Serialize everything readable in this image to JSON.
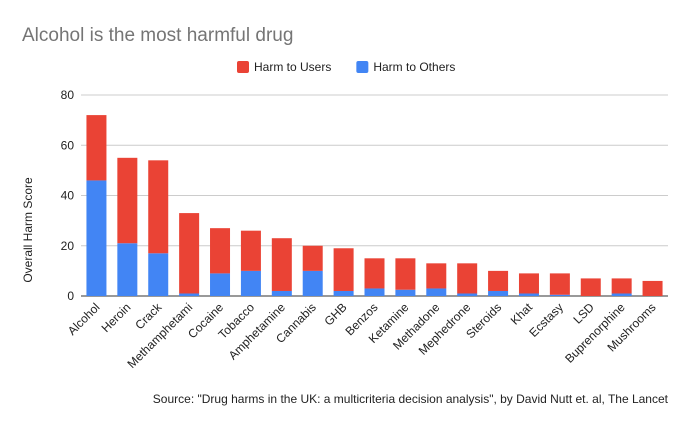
{
  "chart_data": {
    "type": "bar",
    "stacked": true,
    "title": "Alcohol is the most harmful drug",
    "ylabel": "Overall Harm Score",
    "xlabel": "",
    "ylim": [
      0,
      80
    ],
    "yticks": [
      0,
      20,
      40,
      60,
      80
    ],
    "grid": true,
    "legend_position": "top",
    "categories": [
      "Alcohol",
      "Heroin",
      "Crack",
      "Methamphetami",
      "Cocaine",
      "Tobacco",
      "Amphetamine",
      "Cannabis",
      "GHB",
      "Benzos",
      "Ketamine",
      "Methadone",
      "Mephedrone",
      "Steroids",
      "Khat",
      "Ecstasy",
      "LSD",
      "Buprenorphine",
      "Mushrooms"
    ],
    "series": [
      {
        "name": "Harm to Others",
        "color": "#4285f4",
        "values": [
          46,
          21,
          17,
          1,
          9,
          10,
          2,
          10,
          2,
          3,
          2.5,
          3,
          1,
          2,
          1,
          0.5,
          0,
          1,
          0
        ]
      },
      {
        "name": "Harm to Users",
        "color": "#ea4335",
        "values": [
          26,
          34,
          37,
          32,
          18,
          16,
          21,
          10,
          17,
          12,
          12.5,
          10,
          12,
          8,
          8,
          8.5,
          7,
          6,
          6
        ]
      }
    ],
    "legend_order": [
      "Harm to Users",
      "Harm to Others"
    ],
    "source": "Source: \"Drug harms in the UK: a multicriteria decision analysis\", by David Nutt et. al, The Lancet"
  }
}
